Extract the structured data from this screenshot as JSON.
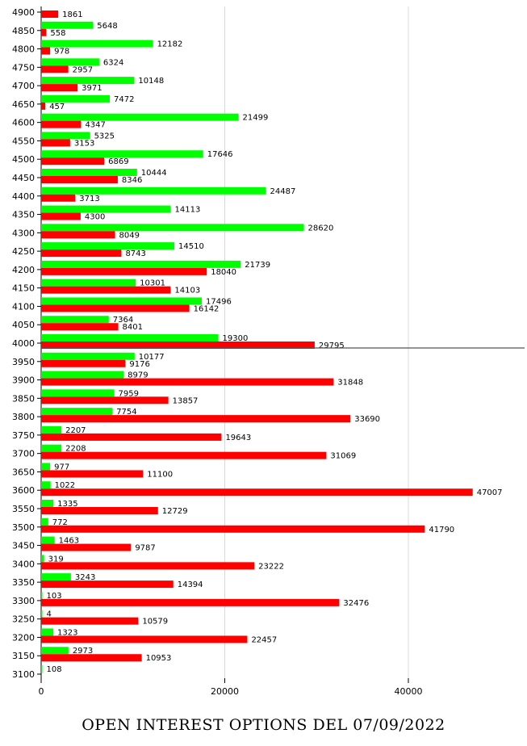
{
  "chart_data": {
    "type": "bar",
    "orientation": "horizontal",
    "title": "OPEN INTEREST OPTIONS DEL 07/09/2022",
    "categories": [
      "4900",
      "4850",
      "4800",
      "4750",
      "4700",
      "4650",
      "4600",
      "4550",
      "4500",
      "4450",
      "4400",
      "4350",
      "4300",
      "4250",
      "4200",
      "4150",
      "4100",
      "4050",
      "4000",
      "3950",
      "3900",
      "3850",
      "3800",
      "3750",
      "3700",
      "3650",
      "3600",
      "3550",
      "3500",
      "3450",
      "3400",
      "3350",
      "3300",
      "3250",
      "3200",
      "3150",
      "3100"
    ],
    "series": [
      {
        "color": "#00ff00",
        "values": [
          0,
          5648,
          12182,
          6324,
          10148,
          7472,
          21499,
          5325,
          17646,
          10444,
          24487,
          14113,
          28620,
          14510,
          21739,
          10301,
          17496,
          7364,
          19300,
          10177,
          8979,
          7959,
          7754,
          2207,
          2208,
          977,
          1022,
          1335,
          772,
          1463,
          319,
          3243,
          103,
          4,
          1323,
          2973,
          108
        ]
      },
      {
        "color": "#ff0000",
        "values": [
          1861,
          558,
          978,
          2957,
          3971,
          457,
          4347,
          3153,
          6869,
          8346,
          3713,
          4300,
          8049,
          8743,
          18040,
          14103,
          16142,
          8401,
          29795,
          9176,
          31848,
          13857,
          33690,
          19643,
          31069,
          11100,
          47007,
          12729,
          41790,
          9787,
          23222,
          14394,
          32476,
          10579,
          22457,
          10953,
          0
        ]
      }
    ],
    "xticks": [
      "0",
      "20000",
      "40000"
    ],
    "xlim": [
      0,
      53000
    ],
    "grid": "vertical",
    "reference_line_at": "4000"
  }
}
